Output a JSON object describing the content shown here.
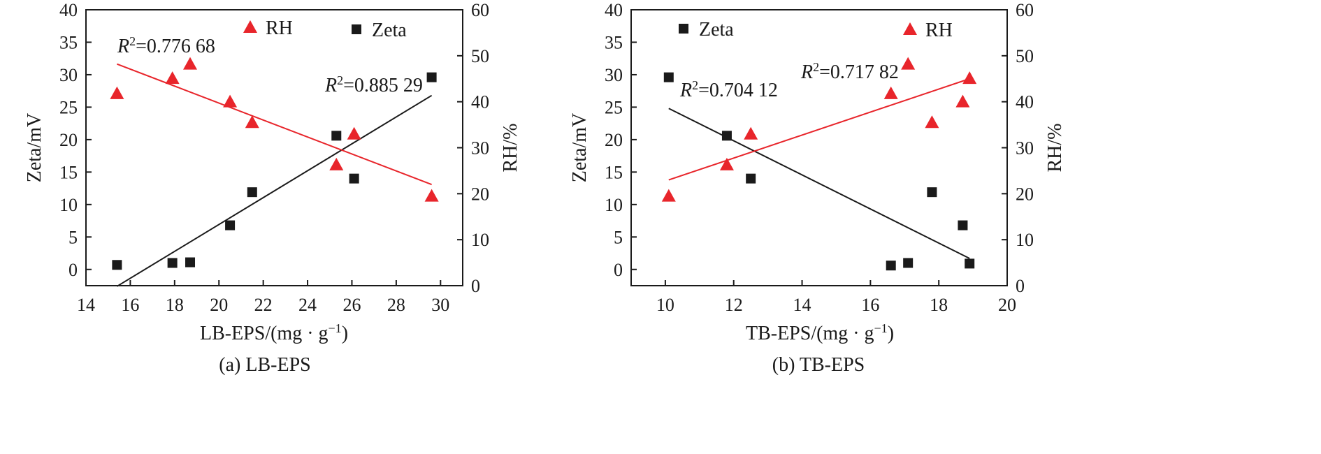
{
  "chart_data": [
    {
      "type": "scatter",
      "caption": "(a) LB-EPS",
      "xlabel": "LB-EPS/(mg · g",
      "xlabel_sup": "−1",
      "xlabel_close": ")",
      "ylabel_left": "Zeta/mV",
      "ylabel_right": "RH/%",
      "xlim": [
        14,
        31
      ],
      "ylim_left": [
        -2.5,
        40
      ],
      "ylim_right": [
        0,
        60
      ],
      "xticks": [
        "14",
        "16",
        "18",
        "20",
        "22",
        "24",
        "26",
        "28",
        "30"
      ],
      "yticks_left": [
        "0",
        "5",
        "10",
        "15",
        "20",
        "25",
        "30",
        "35",
        "40"
      ],
      "yticks_right": [
        "0",
        "10",
        "20",
        "30",
        "40",
        "50",
        "60"
      ],
      "legend": [
        {
          "label": "RH",
          "marker": "triangle",
          "color": "#e8252b"
        },
        {
          "label": "Zeta",
          "marker": "square",
          "color": "#1a1a1a"
        }
      ],
      "series": [
        {
          "name": "Zeta",
          "axis": "left",
          "marker": "square",
          "color": "#1a1a1a",
          "x": [
            15.4,
            17.9,
            18.7,
            20.5,
            21.5,
            25.3,
            26.1,
            29.6
          ],
          "y": [
            0.7,
            1.0,
            1.1,
            6.8,
            11.9,
            20.6,
            14.0,
            29.6
          ],
          "fit": {
            "x": [
              15.4,
              29.6
            ],
            "y": [
              -2.6,
              26.8
            ]
          },
          "r2_prefix": "R",
          "r2_sup": "2",
          "r2_value": "=0.885 29"
        },
        {
          "name": "RH",
          "axis": "right",
          "marker": "triangle",
          "color": "#e8252b",
          "x": [
            15.4,
            17.9,
            18.7,
            20.5,
            21.5,
            25.3,
            26.1,
            29.6
          ],
          "y": [
            41.8,
            45.1,
            48.2,
            40.0,
            35.5,
            26.3,
            33.0,
            19.5
          ],
          "fit": {
            "x": [
              15.4,
              29.6
            ],
            "y": [
              48.2,
              22.0
            ]
          },
          "r2_prefix": "R",
          "r2_sup": "2",
          "r2_value": "=0.776 68"
        }
      ]
    },
    {
      "type": "scatter",
      "caption": "(b) TB-EPS",
      "xlabel": "TB-EPS/(mg · g",
      "xlabel_sup": "−1",
      "xlabel_close": ")",
      "ylabel_left": "Zeta/mV",
      "ylabel_right": "RH/%",
      "xlim": [
        9,
        20
      ],
      "ylim_left": [
        -2.5,
        40
      ],
      "ylim_right": [
        0,
        60
      ],
      "xticks": [
        "10",
        "12",
        "14",
        "16",
        "18",
        "20"
      ],
      "yticks_left": [
        "0",
        "5",
        "10",
        "15",
        "20",
        "25",
        "30",
        "35",
        "40"
      ],
      "yticks_right": [
        "0",
        "10",
        "20",
        "30",
        "40",
        "50",
        "60"
      ],
      "legend": [
        {
          "label": "Zeta",
          "marker": "square",
          "color": "#1a1a1a"
        },
        {
          "label": "RH",
          "marker": "triangle",
          "color": "#e8252b"
        }
      ],
      "series": [
        {
          "name": "Zeta",
          "axis": "left",
          "marker": "square",
          "color": "#1a1a1a",
          "x": [
            10.1,
            11.8,
            12.5,
            16.6,
            17.1,
            17.8,
            18.7,
            18.9
          ],
          "y": [
            29.6,
            20.6,
            14.0,
            0.6,
            1.0,
            11.9,
            6.8,
            0.9
          ],
          "fit": {
            "x": [
              10.1,
              18.9
            ],
            "y": [
              24.8,
              1.7
            ]
          },
          "r2_prefix": "R",
          "r2_sup": "2",
          "r2_value": "=0.704 12"
        },
        {
          "name": "RH",
          "axis": "right",
          "marker": "triangle",
          "color": "#e8252b",
          "x": [
            10.1,
            11.8,
            12.5,
            16.6,
            17.1,
            17.8,
            18.7,
            18.9
          ],
          "y": [
            19.5,
            26.3,
            33.0,
            41.8,
            48.2,
            35.5,
            40.0,
            45.1
          ],
          "fit": {
            "x": [
              10.1,
              18.9
            ],
            "y": [
              23.0,
              45.0
            ]
          },
          "r2_prefix": "R",
          "r2_sup": "2",
          "r2_value": "=0.717 82"
        }
      ]
    }
  ]
}
